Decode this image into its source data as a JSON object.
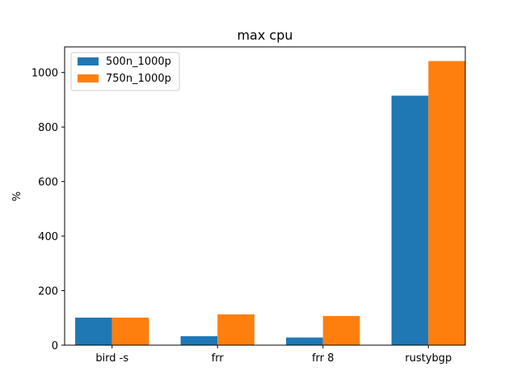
{
  "chart_data": {
    "type": "bar",
    "title": "max cpu",
    "xlabel": "",
    "ylabel": "%",
    "categories": [
      "bird -s",
      "frr",
      "frr 8",
      "rustybgp"
    ],
    "series": [
      {
        "name": "500n_1000p",
        "color": "#1f77b4",
        "values": [
          101,
          33,
          28,
          915
        ]
      },
      {
        "name": "750n_1000p",
        "color": "#ff7f0e",
        "values": [
          101,
          113,
          107,
          1042
        ]
      }
    ],
    "ylim": [
      0,
      1094
    ],
    "yticks": [
      0,
      200,
      400,
      600,
      800,
      1000
    ],
    "grid": false,
    "legend_position": "top-left"
  }
}
